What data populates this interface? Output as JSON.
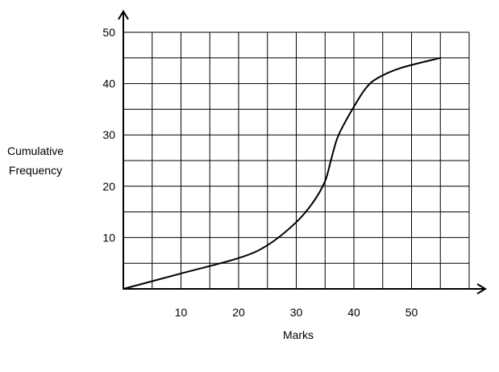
{
  "chart_data": {
    "type": "line",
    "title": "",
    "xlabel": "Marks",
    "ylabel_lines": [
      "Cumulative",
      "Frequency"
    ],
    "xlim": [
      0,
      60
    ],
    "ylim": [
      0,
      50
    ],
    "x_ticks": [
      10,
      20,
      30,
      40,
      50
    ],
    "y_ticks": [
      10,
      20,
      30,
      40,
      50
    ],
    "grid": true,
    "grid_x_step": 5,
    "grid_y_step": 5,
    "series": [
      {
        "x": [
          0,
          10,
          20,
          25,
          30,
          33,
          35,
          36,
          37,
          38,
          40,
          42,
          44,
          48,
          55
        ],
        "y": [
          0,
          3,
          6,
          8.5,
          13,
          17,
          21,
          25,
          29,
          31.5,
          35.5,
          39,
          41,
          43,
          45
        ]
      }
    ]
  },
  "colors": {
    "line": "#000000",
    "grid": "#000000",
    "background": "#ffffff"
  }
}
